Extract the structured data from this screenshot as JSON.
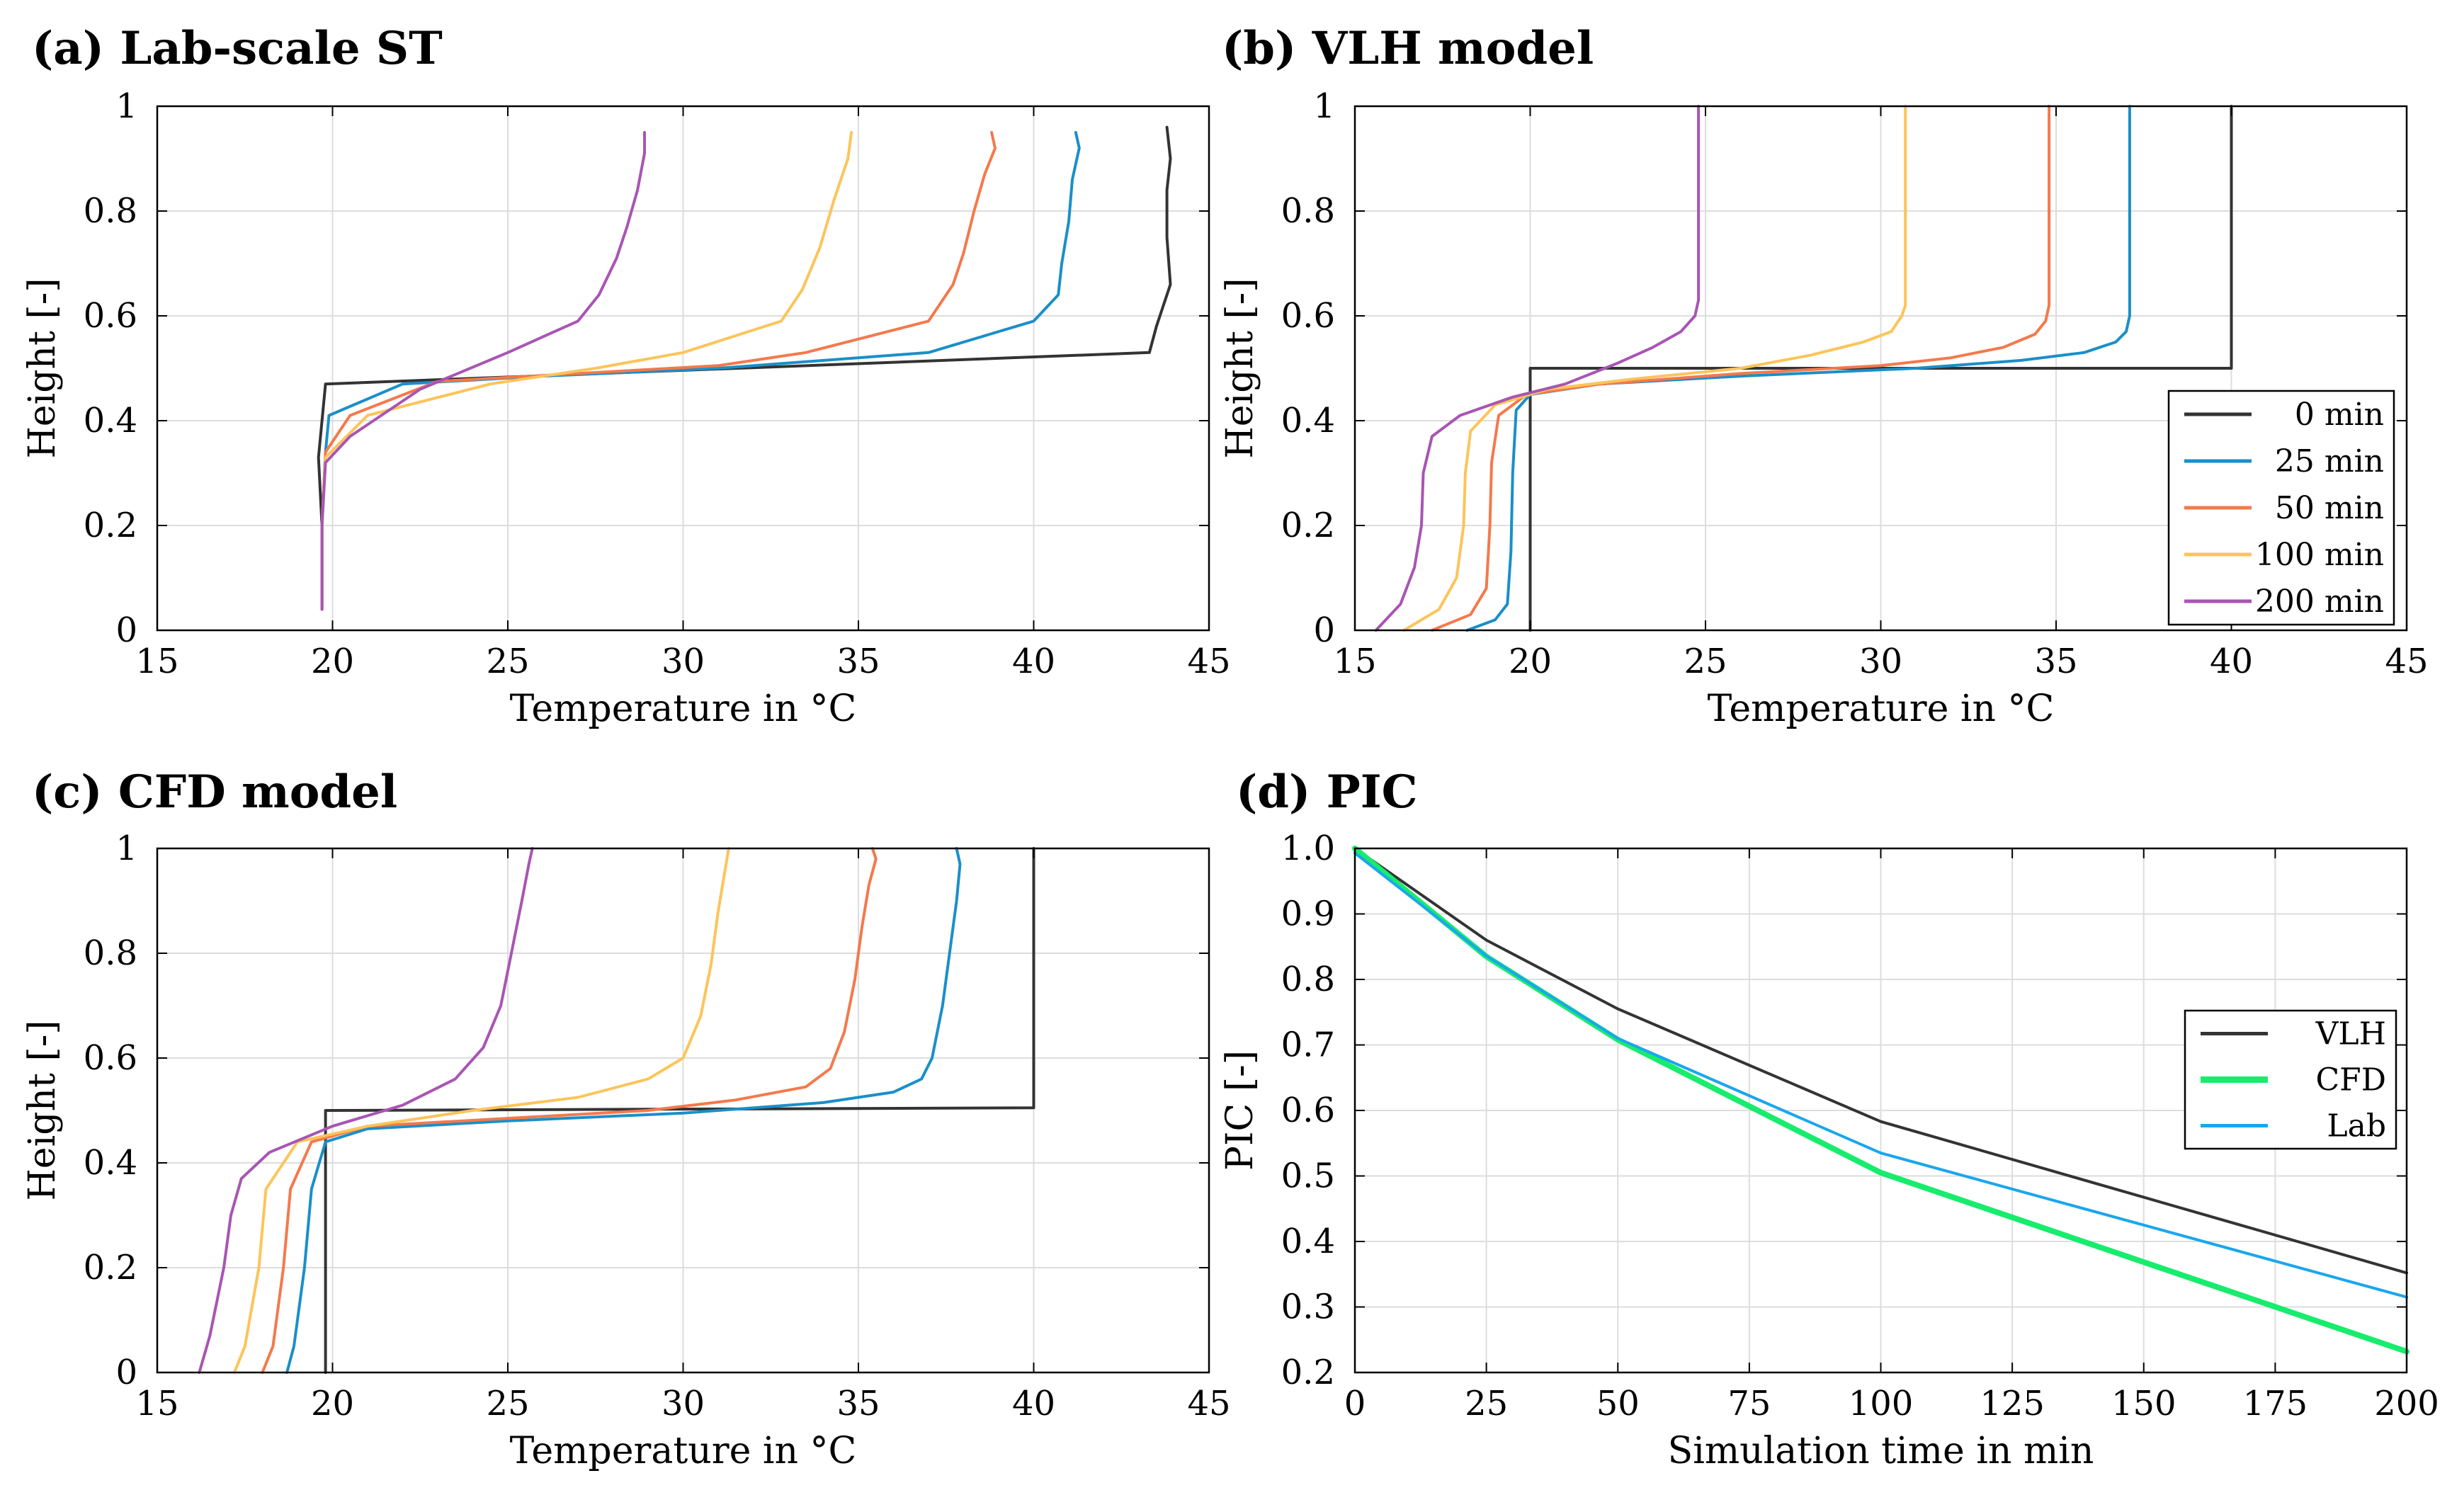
{
  "colors": {
    "t0": "#333333",
    "t25": "#1a8fc9",
    "t50": "#f4794b",
    "t100": "#fcc45a",
    "t200": "#a855b3",
    "VLH": "#333333",
    "CFD": "#17ec6c",
    "Lab": "#1aa6ee"
  },
  "chart_data": [
    {
      "id": "a",
      "type": "line",
      "title": "(a) Lab-scale ST",
      "xlabel": "Temperature in °C",
      "ylabel": "Height [-]",
      "xlim": [
        15,
        45
      ],
      "ylim": [
        0,
        1
      ],
      "xticks": [
        15,
        20,
        25,
        30,
        35,
        40,
        45
      ],
      "yticks": [
        0,
        0.2,
        0.4,
        0.6,
        0.8,
        1
      ],
      "ytick_labels": [
        "0",
        "0.2",
        "0.4",
        "0.6",
        "0.8",
        "1"
      ],
      "grid": true,
      "legend": null,
      "series": [
        {
          "name": "0 min",
          "color_key": "t0",
          "points": [
            [
              19.7,
              0.04
            ],
            [
              19.7,
              0.2
            ],
            [
              19.6,
              0.33
            ],
            [
              19.8,
              0.47
            ],
            [
              43.3,
              0.53
            ],
            [
              43.5,
              0.58
            ],
            [
              43.9,
              0.66
            ],
            [
              43.8,
              0.75
            ],
            [
              43.8,
              0.84
            ],
            [
              43.9,
              0.9
            ],
            [
              43.8,
              0.96
            ]
          ]
        },
        {
          "name": "25 min",
          "color_key": "t25",
          "points": [
            [
              19.7,
              0.04
            ],
            [
              19.7,
              0.2
            ],
            [
              19.8,
              0.34
            ],
            [
              19.9,
              0.41
            ],
            [
              22,
              0.47
            ],
            [
              26,
              0.485
            ],
            [
              31,
              0.5
            ],
            [
              37,
              0.53
            ],
            [
              40,
              0.59
            ],
            [
              40.7,
              0.64
            ],
            [
              40.8,
              0.7
            ],
            [
              41,
              0.78
            ],
            [
              41.1,
              0.86
            ],
            [
              41.3,
              0.92
            ],
            [
              41.2,
              0.95
            ]
          ]
        },
        {
          "name": "50 min",
          "color_key": "t50",
          "points": [
            [
              19.7,
              0.04
            ],
            [
              19.7,
              0.2
            ],
            [
              19.8,
              0.34
            ],
            [
              20.5,
              0.41
            ],
            [
              23,
              0.475
            ],
            [
              27,
              0.49
            ],
            [
              31,
              0.505
            ],
            [
              33.5,
              0.53
            ],
            [
              37,
              0.59
            ],
            [
              37.7,
              0.66
            ],
            [
              38,
              0.72
            ],
            [
              38.3,
              0.8
            ],
            [
              38.6,
              0.87
            ],
            [
              38.9,
              0.92
            ],
            [
              38.8,
              0.95
            ]
          ]
        },
        {
          "name": "100 min",
          "color_key": "t100",
          "points": [
            [
              19.7,
              0.04
            ],
            [
              19.7,
              0.2
            ],
            [
              19.8,
              0.33
            ],
            [
              21,
              0.41
            ],
            [
              24.5,
              0.47
            ],
            [
              27.5,
              0.5
            ],
            [
              30,
              0.53
            ],
            [
              32.8,
              0.59
            ],
            [
              33.4,
              0.65
            ],
            [
              33.9,
              0.73
            ],
            [
              34.3,
              0.82
            ],
            [
              34.7,
              0.9
            ],
            [
              34.8,
              0.95
            ]
          ]
        },
        {
          "name": "200 min",
          "color_key": "t200",
          "points": [
            [
              19.7,
              0.04
            ],
            [
              19.7,
              0.2
            ],
            [
              19.8,
              0.32
            ],
            [
              20.5,
              0.37
            ],
            [
              22.5,
              0.46
            ],
            [
              25,
              0.53
            ],
            [
              27,
              0.59
            ],
            [
              27.6,
              0.64
            ],
            [
              28.1,
              0.71
            ],
            [
              28.4,
              0.77
            ],
            [
              28.7,
              0.84
            ],
            [
              28.9,
              0.91
            ],
            [
              28.9,
              0.95
            ]
          ]
        }
      ]
    },
    {
      "id": "b",
      "type": "line",
      "title": "(b) VLH model",
      "xlabel": "Temperature in °C",
      "ylabel": "Height [-]",
      "xlim": [
        15,
        45
      ],
      "ylim": [
        0,
        1
      ],
      "xticks": [
        15,
        20,
        25,
        30,
        35,
        40,
        45
      ],
      "yticks": [
        0,
        0.2,
        0.4,
        0.6,
        0.8,
        1
      ],
      "ytick_labels": [
        "0",
        "0.2",
        "0.4",
        "0.6",
        "0.8",
        "1"
      ],
      "grid": true,
      "legend": {
        "position": "right-middle",
        "entries": [
          "0 min",
          "25 min",
          "50 min",
          "100 min",
          "200 min"
        ]
      },
      "series": [
        {
          "name": "0 min",
          "color_key": "t0",
          "points": [
            [
              20,
              0
            ],
            [
              20,
              0.5
            ],
            [
              40,
              0.5
            ],
            [
              40,
              1
            ]
          ]
        },
        {
          "name": "25 min",
          "color_key": "t25",
          "points": [
            [
              18.2,
              0
            ],
            [
              19,
              0.02
            ],
            [
              19.35,
              0.05
            ],
            [
              19.45,
              0.15
            ],
            [
              19.5,
              0.3
            ],
            [
              19.6,
              0.42
            ],
            [
              20,
              0.45
            ],
            [
              22,
              0.47
            ],
            [
              26,
              0.485
            ],
            [
              31,
              0.5
            ],
            [
              34,
              0.515
            ],
            [
              35.8,
              0.53
            ],
            [
              36.7,
              0.55
            ],
            [
              37,
              0.57
            ],
            [
              37.1,
              0.6
            ],
            [
              37.1,
              1
            ]
          ]
        },
        {
          "name": "50 min",
          "color_key": "t50",
          "points": [
            [
              17.2,
              0
            ],
            [
              18.3,
              0.03
            ],
            [
              18.75,
              0.08
            ],
            [
              18.85,
              0.2
            ],
            [
              18.9,
              0.32
            ],
            [
              19.1,
              0.41
            ],
            [
              19.9,
              0.45
            ],
            [
              22,
              0.47
            ],
            [
              26,
              0.49
            ],
            [
              30,
              0.505
            ],
            [
              32,
              0.52
            ],
            [
              33.5,
              0.54
            ],
            [
              34.4,
              0.565
            ],
            [
              34.7,
              0.59
            ],
            [
              34.8,
              0.62
            ],
            [
              34.8,
              1
            ]
          ]
        },
        {
          "name": "100 min",
          "color_key": "t100",
          "points": [
            [
              16.4,
              0
            ],
            [
              17.4,
              0.04
            ],
            [
              17.9,
              0.1
            ],
            [
              18.1,
              0.2
            ],
            [
              18.15,
              0.3
            ],
            [
              18.3,
              0.38
            ],
            [
              19,
              0.43
            ],
            [
              20.5,
              0.46
            ],
            [
              23,
              0.48
            ],
            [
              26,
              0.5
            ],
            [
              28,
              0.525
            ],
            [
              29.5,
              0.55
            ],
            [
              30.3,
              0.57
            ],
            [
              30.6,
              0.6
            ],
            [
              30.7,
              0.62
            ],
            [
              30.7,
              1
            ]
          ]
        },
        {
          "name": "200 min",
          "color_key": "t200",
          "points": [
            [
              15.6,
              0
            ],
            [
              16.3,
              0.05
            ],
            [
              16.7,
              0.12
            ],
            [
              16.9,
              0.2
            ],
            [
              16.95,
              0.3
            ],
            [
              17.2,
              0.37
            ],
            [
              18,
              0.41
            ],
            [
              19.5,
              0.445
            ],
            [
              21,
              0.47
            ],
            [
              22.5,
              0.51
            ],
            [
              23.5,
              0.54
            ],
            [
              24.3,
              0.57
            ],
            [
              24.7,
              0.6
            ],
            [
              24.8,
              0.63
            ],
            [
              24.8,
              1
            ]
          ]
        }
      ]
    },
    {
      "id": "c",
      "type": "line",
      "title": "(c) CFD model",
      "xlabel": "Temperature in °C",
      "ylabel": "Height [-]",
      "xlim": [
        15,
        45
      ],
      "ylim": [
        0,
        1
      ],
      "xticks": [
        15,
        20,
        25,
        30,
        35,
        40,
        45
      ],
      "yticks": [
        0,
        0.2,
        0.4,
        0.6,
        0.8,
        1
      ],
      "ytick_labels": [
        "0",
        "0.2",
        "0.4",
        "0.6",
        "0.8",
        "1"
      ],
      "grid": true,
      "legend": null,
      "series": [
        {
          "name": "0 min",
          "color_key": "t0",
          "points": [
            [
              19.8,
              0
            ],
            [
              19.8,
              0.5
            ],
            [
              40,
              0.505
            ],
            [
              40,
              1
            ]
          ]
        },
        {
          "name": "25 min",
          "color_key": "t25",
          "points": [
            [
              18.7,
              0
            ],
            [
              18.9,
              0.05
            ],
            [
              19.2,
              0.2
            ],
            [
              19.4,
              0.35
            ],
            [
              19.8,
              0.44
            ],
            [
              21,
              0.465
            ],
            [
              25,
              0.48
            ],
            [
              30,
              0.495
            ],
            [
              34,
              0.515
            ],
            [
              36,
              0.535
            ],
            [
              36.8,
              0.56
            ],
            [
              37.1,
              0.6
            ],
            [
              37.4,
              0.7
            ],
            [
              37.6,
              0.8
            ],
            [
              37.8,
              0.9
            ],
            [
              37.9,
              0.97
            ],
            [
              37.8,
              1
            ]
          ]
        },
        {
          "name": "50 min",
          "color_key": "t50",
          "points": [
            [
              18,
              0
            ],
            [
              18.3,
              0.05
            ],
            [
              18.6,
              0.2
            ],
            [
              18.8,
              0.35
            ],
            [
              19.4,
              0.44
            ],
            [
              21,
              0.47
            ],
            [
              25,
              0.485
            ],
            [
              29,
              0.5
            ],
            [
              31.5,
              0.52
            ],
            [
              33.5,
              0.545
            ],
            [
              34.2,
              0.58
            ],
            [
              34.6,
              0.65
            ],
            [
              34.9,
              0.75
            ],
            [
              35.1,
              0.85
            ],
            [
              35.3,
              0.93
            ],
            [
              35.5,
              0.98
            ],
            [
              35.4,
              1
            ]
          ]
        },
        {
          "name": "100 min",
          "color_key": "t100",
          "points": [
            [
              17.2,
              0
            ],
            [
              17.5,
              0.05
            ],
            [
              17.9,
              0.2
            ],
            [
              18.1,
              0.35
            ],
            [
              19,
              0.44
            ],
            [
              21,
              0.47
            ],
            [
              24,
              0.5
            ],
            [
              27,
              0.525
            ],
            [
              29,
              0.56
            ],
            [
              30,
              0.6
            ],
            [
              30.5,
              0.68
            ],
            [
              30.8,
              0.78
            ],
            [
              31,
              0.88
            ],
            [
              31.2,
              0.96
            ],
            [
              31.3,
              1
            ]
          ]
        },
        {
          "name": "200 min",
          "color_key": "t200",
          "points": [
            [
              16.2,
              0
            ],
            [
              16.5,
              0.07
            ],
            [
              16.9,
              0.2
            ],
            [
              17.1,
              0.3
            ],
            [
              17.4,
              0.37
            ],
            [
              18.2,
              0.42
            ],
            [
              20,
              0.47
            ],
            [
              22,
              0.51
            ],
            [
              23.5,
              0.56
            ],
            [
              24.3,
              0.62
            ],
            [
              24.8,
              0.7
            ],
            [
              25.1,
              0.8
            ],
            [
              25.4,
              0.9
            ],
            [
              25.6,
              0.97
            ],
            [
              25.7,
              1
            ]
          ]
        }
      ]
    },
    {
      "id": "d",
      "type": "line",
      "title": "(d) PIC",
      "xlabel": "Simulation time in min",
      "ylabel": "PIC [-]",
      "xlim": [
        0,
        200
      ],
      "ylim": [
        0.2,
        1
      ],
      "xticks": [
        0,
        25,
        50,
        75,
        100,
        125,
        150,
        175,
        200
      ],
      "yticks": [
        0.2,
        0.3,
        0.4,
        0.5,
        0.6,
        0.7,
        0.8,
        0.9,
        1.0
      ],
      "ytick_labels": [
        "0.2",
        "0.3",
        "0.4",
        "0.5",
        "0.6",
        "0.7",
        "0.8",
        "0.9",
        "1.0"
      ],
      "grid": true,
      "legend": {
        "position": "right-middle",
        "entries": [
          "VLH",
          "CFD",
          "Lab"
        ]
      },
      "series": [
        {
          "name": "VLH",
          "color_key": "VLH",
          "width": 4,
          "points": [
            [
              0,
              1.0
            ],
            [
              25,
              0.86
            ],
            [
              50,
              0.755
            ],
            [
              100,
              0.583
            ],
            [
              200,
              0.352
            ]
          ]
        },
        {
          "name": "CFD",
          "color_key": "CFD",
          "width": 8,
          "points": [
            [
              0,
              1.0
            ],
            [
              25,
              0.835
            ],
            [
              50,
              0.708
            ],
            [
              100,
              0.505
            ],
            [
              200,
              0.232
            ]
          ]
        },
        {
          "name": "Lab",
          "color_key": "Lab",
          "width": 4,
          "points": [
            [
              0,
              0.993
            ],
            [
              25,
              0.836
            ],
            [
              50,
              0.71
            ],
            [
              100,
              0.535
            ],
            [
              200,
              0.315
            ]
          ]
        }
      ]
    }
  ]
}
